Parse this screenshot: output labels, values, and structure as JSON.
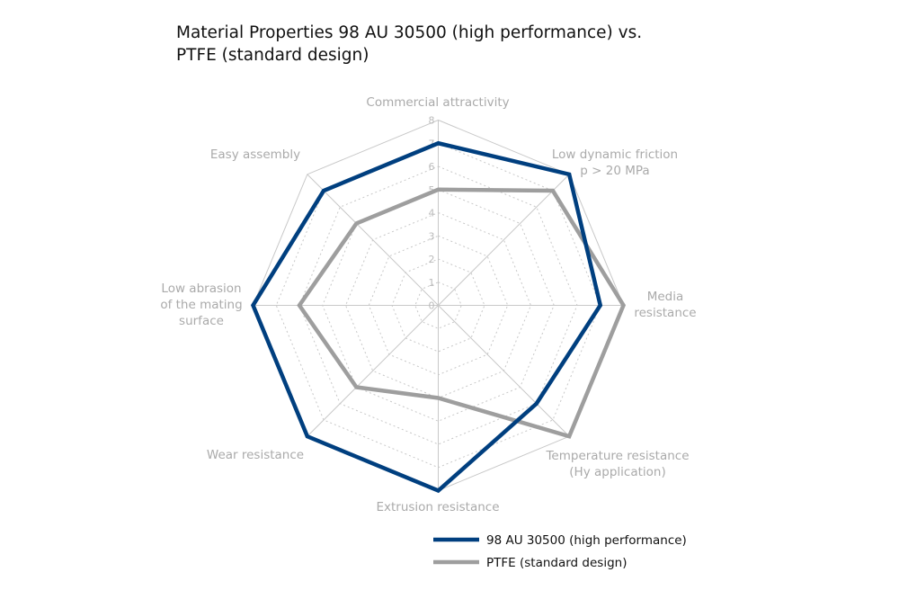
{
  "chart_data": {
    "type": "radar",
    "title": "Material Properties 98 AU 30500 (high performance) vs. PTFE (standard design)",
    "axes": [
      [
        "Commercial attractivity"
      ],
      [
        "Low dynamic friction",
        "p > 20 MPa"
      ],
      [
        "Media",
        "resistance"
      ],
      [
        "Temperature resistance",
        "(Hy application)"
      ],
      [
        "Extrusion resistance"
      ],
      [
        "Wear resistance"
      ],
      [
        "Low abrasion",
        "of the mating",
        "surface"
      ],
      [
        "Easy assembly"
      ]
    ],
    "rlim": [
      0,
      8
    ],
    "ticks": [
      "0",
      "1",
      "2",
      "3",
      "4",
      "5",
      "6",
      "7",
      "8"
    ],
    "grid": true,
    "legend_position": "bottom-right",
    "series": [
      {
        "name": "98 AU 30500 (high performance)",
        "color": "#003f7f",
        "values": [
          7,
          8,
          7,
          6,
          8,
          8,
          8,
          7
        ]
      },
      {
        "name": "PTFE (standard design)",
        "color": "#9e9e9e",
        "values": [
          5,
          7,
          8,
          8,
          4,
          5,
          6,
          5
        ]
      }
    ]
  }
}
